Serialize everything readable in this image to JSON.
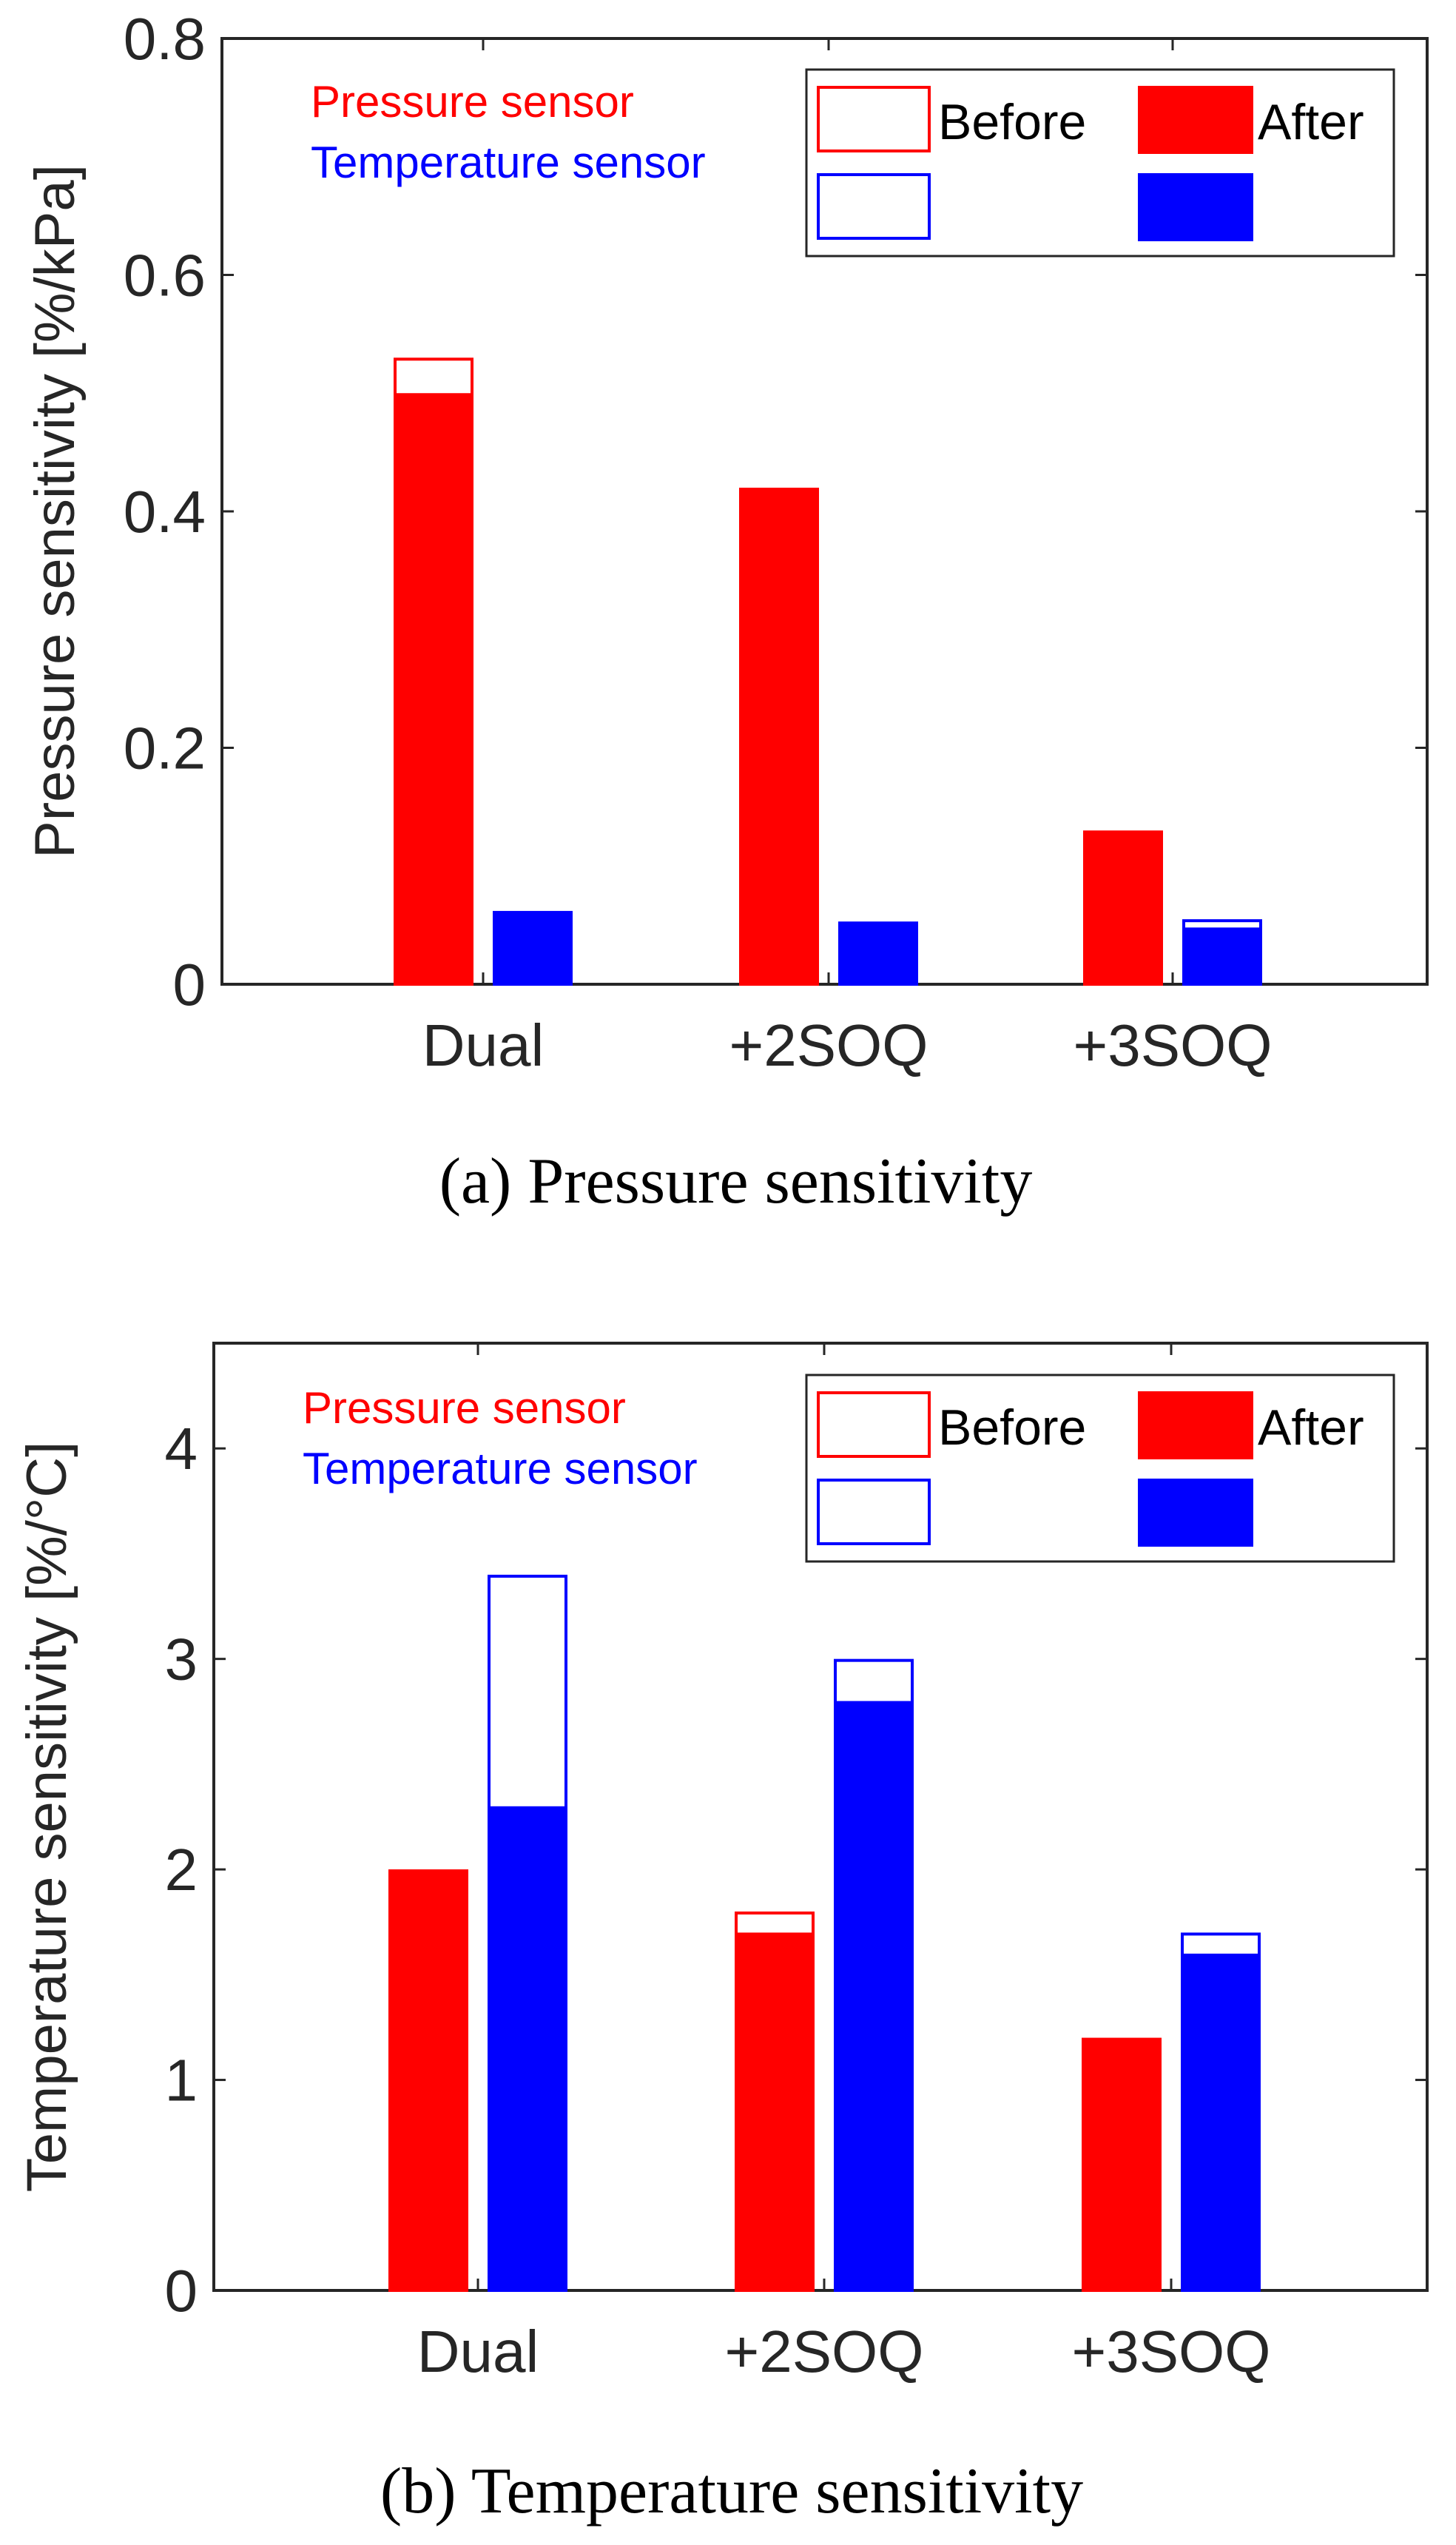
{
  "colors": {
    "pressure": "#ff0000",
    "temperature": "#0000ff",
    "axis": "#262626"
  },
  "chart_data": [
    {
      "type": "bar",
      "title": "(a) Pressure sensitivity",
      "ylabel": "Pressure sensitivity [%/kPa]",
      "xlabel": "",
      "categories": [
        "Dual",
        "+2SOQ",
        "+3SOQ"
      ],
      "ylim": [
        0,
        0.8
      ],
      "yticks": [
        0,
        0.2,
        0.4,
        0.6,
        0.8
      ],
      "ytick_labels": [
        "0",
        "0.2",
        "0.4",
        "0.6",
        "0.8"
      ],
      "series": [
        {
          "name": "Pressure sensor",
          "before": [
            0.53,
            0.42,
            0.13
          ],
          "after": [
            0.5,
            0.42,
            0.13
          ]
        },
        {
          "name": "Temperature sensor",
          "before": [
            0.062,
            0.053,
            0.055
          ],
          "after": [
            0.062,
            0.053,
            0.048
          ]
        }
      ],
      "annotations": [
        "Pressure sensor",
        "Temperature sensor"
      ],
      "legend": {
        "position": "top-right",
        "entries": [
          "Before",
          "After"
        ]
      }
    },
    {
      "type": "bar",
      "title": "(b) Temperature sensitivity",
      "ylabel": "Temperature sensitivity [%/°C]",
      "xlabel": "",
      "categories": [
        "Dual",
        "+2SOQ",
        "+3SOQ"
      ],
      "ylim": [
        0,
        4.5
      ],
      "yticks": [
        0,
        1,
        2,
        3,
        4
      ],
      "ytick_labels": [
        "0",
        "1",
        "2",
        "3",
        "4"
      ],
      "series": [
        {
          "name": "Pressure sensor",
          "before": [
            2.0,
            1.8,
            1.2
          ],
          "after": [
            2.0,
            1.7,
            1.2
          ]
        },
        {
          "name": "Temperature sensor",
          "before": [
            3.4,
            3.0,
            1.7
          ],
          "after": [
            2.3,
            2.8,
            1.6
          ]
        }
      ],
      "annotations": [
        "Pressure sensor",
        "Temperature sensor"
      ],
      "legend": {
        "position": "top-right",
        "entries": [
          "Before",
          "After"
        ]
      }
    }
  ]
}
